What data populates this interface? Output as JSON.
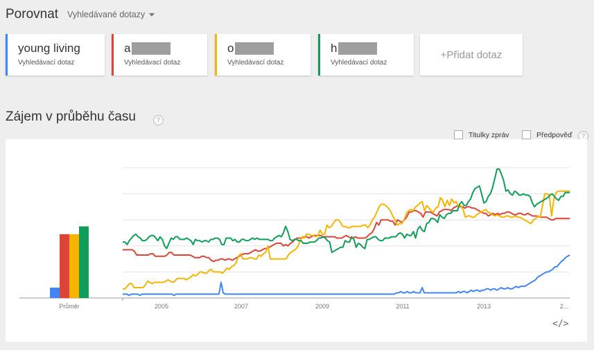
{
  "header": {
    "title": "Porovnat",
    "dropdown_label": "Vyhledávané dotazy"
  },
  "terms": [
    {
      "prefix": "young living",
      "redacted": false,
      "sub": "Vyhledávací dotaz",
      "color": "#4285f4"
    },
    {
      "prefix": "a",
      "redacted": true,
      "sub": "Vyhledávací dotaz",
      "color": "#db4437"
    },
    {
      "prefix": "o",
      "redacted": true,
      "sub": "Vyhledávací dotaz",
      "color": "#f4b400"
    },
    {
      "prefix": "h",
      "redacted": true,
      "sub": "Vyhledávací dotaz",
      "color": "#0f9d58"
    }
  ],
  "add_term_label": "+Přidat dotaz",
  "section": {
    "title": "Zájem v průběhu času",
    "help": "?"
  },
  "options": {
    "news_label": "Titulky zpráv",
    "forecast_label": "Předpověď"
  },
  "chart_data": {
    "type": "line",
    "x_ticks": [
      "2005",
      "2007",
      "2009",
      "2011",
      "2013",
      "2..."
    ],
    "average_label": "Průměr",
    "averages": [
      8,
      49,
      49,
      55
    ],
    "ylim": [
      0,
      100
    ],
    "series": [
      {
        "color": "#4285f4",
        "values": [
          3,
          3,
          3,
          2,
          3,
          3,
          3,
          3,
          2,
          3,
          3,
          3,
          3,
          3,
          3,
          3,
          3,
          3,
          3,
          3,
          3,
          3,
          3,
          3,
          2,
          3,
          3,
          3,
          3,
          3,
          3,
          3,
          3,
          3,
          3,
          3,
          3,
          3,
          3,
          3,
          3,
          3,
          3,
          3,
          3,
          3,
          12,
          4,
          3,
          3,
          3,
          3,
          3,
          3,
          3,
          3,
          3,
          3,
          3,
          3,
          3,
          3,
          3,
          3,
          3,
          3,
          3,
          3,
          3,
          3,
          3,
          3,
          3,
          3,
          3,
          3,
          3,
          3,
          3,
          3,
          3,
          3,
          3,
          3,
          3,
          3,
          3,
          3,
          3,
          3,
          3,
          3,
          3,
          3,
          3,
          3,
          3,
          3,
          3,
          3,
          3,
          3,
          3,
          3,
          3,
          3,
          3,
          3,
          3,
          3,
          3,
          3,
          3,
          3,
          3,
          3,
          3,
          3,
          3,
          3,
          3,
          3,
          3,
          3,
          3,
          3,
          3,
          3,
          4,
          4,
          5,
          4,
          4,
          5,
          4,
          4,
          5,
          4,
          4,
          4,
          8,
          4,
          4,
          4,
          4,
          4,
          4,
          4,
          4,
          4,
          4,
          4,
          4,
          4,
          4,
          4,
          4,
          5,
          4,
          5,
          5,
          4,
          5,
          6,
          5,
          6,
          6,
          5,
          6,
          6,
          7,
          7,
          6,
          7,
          7,
          6,
          7,
          8,
          7,
          7,
          8,
          7,
          7,
          8,
          9,
          8,
          9,
          9,
          9,
          10,
          11,
          12,
          13,
          14,
          16,
          17,
          18,
          19,
          20,
          20,
          21,
          22,
          24,
          24,
          26,
          28,
          29,
          31,
          32,
          33
        ]
      },
      {
        "color": "#db4437",
        "values": [
          37,
          37,
          37,
          37,
          37,
          36,
          33,
          33,
          33,
          33,
          33,
          33,
          34,
          34,
          32,
          32,
          32,
          32,
          32,
          33,
          35,
          35,
          33,
          33,
          33,
          33,
          33,
          33,
          33,
          33,
          32,
          31,
          31,
          31,
          32,
          32,
          31,
          31,
          29,
          28,
          29,
          29,
          30,
          30,
          29,
          30,
          30,
          29,
          30,
          31,
          32,
          33,
          34,
          34,
          34,
          35,
          36,
          37,
          36,
          36,
          37,
          38,
          38,
          39,
          40,
          41,
          42,
          42,
          42,
          40,
          41,
          40,
          42,
          43,
          45,
          46,
          46,
          46,
          47,
          47,
          46,
          47,
          48,
          48,
          48,
          48,
          47,
          47,
          47,
          47,
          47,
          47,
          46,
          46,
          46,
          47,
          48,
          47,
          46,
          46,
          47,
          46,
          46,
          46,
          46,
          47,
          49,
          50,
          53,
          58,
          56,
          60,
          60,
          60,
          60,
          59,
          59,
          56,
          60,
          59,
          58,
          60,
          62,
          66,
          66,
          67,
          67,
          66,
          65,
          62,
          66,
          66,
          66,
          65,
          64,
          63,
          66,
          67,
          68,
          68,
          68,
          67,
          69,
          70,
          71,
          70,
          70,
          69,
          70,
          70,
          69,
          69,
          68,
          67,
          66,
          65,
          65,
          63,
          64,
          65,
          64,
          65,
          64,
          65,
          65,
          66,
          66,
          65,
          64,
          64,
          65,
          65,
          64,
          64,
          65,
          64,
          63,
          63,
          63,
          62,
          62,
          62,
          62,
          61,
          60,
          60,
          61,
          61,
          61,
          61,
          61,
          61,
          61
        ]
      },
      {
        "color": "#f4b400",
        "values": [
          7,
          7,
          9,
          11,
          11,
          8,
          8,
          8,
          8,
          8,
          10,
          13,
          12,
          11,
          12,
          12,
          12,
          12,
          12,
          13,
          14,
          13,
          12,
          13,
          15,
          15,
          15,
          15,
          14,
          15,
          16,
          18,
          17,
          18,
          20,
          20,
          19,
          19,
          21,
          22,
          20,
          20,
          20,
          20,
          19,
          21,
          23,
          22,
          24,
          25,
          27,
          32,
          34,
          30,
          30,
          30,
          31,
          31,
          30,
          30,
          33,
          32,
          34,
          35,
          40,
          30,
          30,
          30,
          30,
          30,
          30,
          30,
          30,
          33,
          35,
          36,
          37,
          39,
          43,
          47,
          46,
          49,
          49,
          48,
          48,
          47,
          48,
          52,
          49,
          49,
          56,
          54,
          55,
          58,
          60,
          60,
          58,
          55,
          55,
          54,
          54,
          55,
          55,
          55,
          55,
          55,
          56,
          56,
          54,
          56,
          60,
          62,
          66,
          70,
          72,
          72,
          71,
          69,
          67,
          63,
          60,
          56,
          57,
          57,
          60,
          65,
          67,
          68,
          67,
          70,
          71,
          73,
          74,
          67,
          71,
          69,
          67,
          66,
          69,
          70,
          77,
          75,
          70,
          75,
          71,
          76,
          73,
          74,
          70,
          71,
          68,
          62,
          63,
          63,
          62,
          62,
          64,
          65,
          66,
          67,
          68,
          66,
          65,
          64,
          63,
          64,
          63,
          62,
          62,
          63,
          63,
          62,
          62,
          63,
          62,
          62,
          61,
          60,
          59,
          58,
          57,
          60,
          61,
          63,
          62,
          71,
          80,
          80,
          79,
          63,
          76,
          81,
          82,
          82,
          82,
          82,
          82,
          82
        ]
      },
      {
        "color": "#0f9d58",
        "values": [
          43,
          43,
          41,
          44,
          46,
          48,
          49,
          47,
          46,
          44,
          44,
          45,
          47,
          48,
          48,
          46,
          44,
          47,
          45,
          40,
          38,
          42,
          46,
          45,
          47,
          47,
          45,
          45,
          45,
          46,
          45,
          44,
          41,
          45,
          44,
          44,
          43,
          44,
          44,
          43,
          45,
          45,
          46,
          46,
          45,
          41,
          41,
          46,
          46,
          46,
          44,
          45,
          43,
          43,
          45,
          45,
          44,
          44,
          45,
          46,
          45,
          46,
          45,
          45,
          45,
          45,
          45,
          44,
          44,
          46,
          47,
          48,
          47,
          50,
          55,
          51,
          45,
          44,
          45,
          45,
          44,
          44,
          42,
          42,
          42,
          43,
          43,
          43,
          44,
          46,
          46,
          47,
          46,
          44,
          43,
          35,
          36,
          37,
          38,
          39,
          39,
          44,
          43,
          43,
          47,
          45,
          39,
          42,
          41,
          39,
          38,
          45,
          45,
          46,
          47,
          47,
          45,
          44,
          44,
          46,
          46,
          46,
          47,
          47,
          47,
          49,
          50,
          49,
          46,
          49,
          48,
          48,
          51,
          46,
          53,
          55,
          52,
          51,
          57,
          58,
          61,
          61,
          60,
          58,
          64,
          62,
          61,
          64,
          65,
          65,
          67,
          67,
          67,
          72,
          74,
          71,
          71,
          74,
          76,
          81,
          84,
          85,
          86,
          80,
          73,
          74,
          78,
          80,
          85,
          92,
          99,
          99,
          95,
          90,
          82,
          83,
          80,
          79,
          82,
          81,
          79,
          79,
          80,
          79,
          79,
          78,
          73,
          70,
          72,
          73,
          74,
          75,
          76,
          77,
          79,
          80,
          78,
          76,
          75,
          78,
          78,
          81,
          81,
          81
        ]
      }
    ]
  }
}
